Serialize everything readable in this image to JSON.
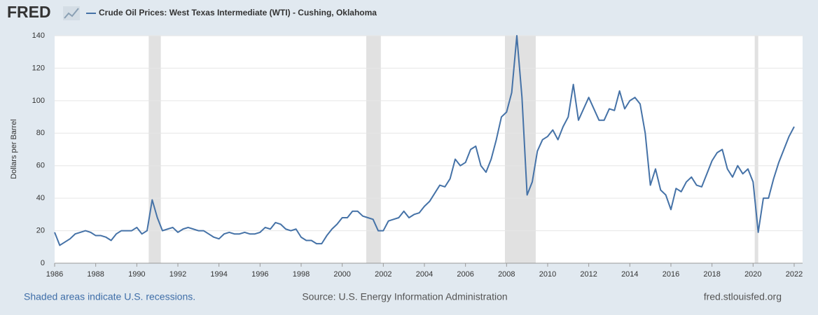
{
  "logo": "FRED",
  "chart_data": {
    "type": "line",
    "ylabel": "Dollars per Barrel",
    "series": [
      {
        "name": "Crude Oil Prices: West Texas Intermediate (WTI) - Cushing, Oklahoma",
        "color": "#4572a7",
        "values": [
          19,
          11,
          13,
          15,
          18,
          19,
          20,
          19,
          17,
          17,
          16,
          14,
          18,
          20,
          20,
          20,
          22,
          18,
          20,
          39,
          28,
          20,
          21,
          22,
          19,
          21,
          22,
          21,
          20,
          20,
          18,
          16,
          15,
          18,
          19,
          18,
          18,
          19,
          18,
          18,
          19,
          22,
          21,
          25,
          24,
          21,
          20,
          21,
          16,
          14,
          14,
          12,
          12,
          17,
          21,
          24,
          28,
          28,
          32,
          32,
          29,
          28,
          27,
          20,
          20,
          26,
          27,
          28,
          32,
          28,
          30,
          31,
          35,
          38,
          43,
          48,
          47,
          52,
          64,
          60,
          62,
          70,
          72,
          60,
          56,
          64,
          76,
          90,
          93,
          105,
          140,
          102,
          42,
          50,
          69,
          76,
          78,
          82,
          76,
          84,
          90,
          110,
          88,
          95,
          102,
          95,
          88,
          88,
          95,
          94,
          106,
          95,
          100,
          102,
          98,
          80,
          48,
          58,
          45,
          42,
          33,
          46,
          44,
          50,
          53,
          48,
          47,
          55,
          63,
          68,
          70,
          58,
          53,
          60,
          55,
          58,
          50,
          19,
          40,
          40,
          52,
          62,
          70,
          78,
          84
        ]
      }
    ],
    "x": [
      1986,
      1986.25,
      1986.5,
      1986.75,
      1987,
      1987.25,
      1987.5,
      1987.75,
      1988,
      1988.25,
      1988.5,
      1988.75,
      1989,
      1989.25,
      1989.5,
      1989.75,
      1990,
      1990.25,
      1990.5,
      1990.75,
      1991,
      1991.25,
      1991.5,
      1991.75,
      1992,
      1992.25,
      1992.5,
      1992.75,
      1993,
      1993.25,
      1993.5,
      1993.75,
      1994,
      1994.25,
      1994.5,
      1994.75,
      1995,
      1995.25,
      1995.5,
      1995.75,
      1996,
      1996.25,
      1996.5,
      1996.75,
      1997,
      1997.25,
      1997.5,
      1997.75,
      1998,
      1998.25,
      1998.5,
      1998.75,
      1999,
      1999.25,
      1999.5,
      1999.75,
      2000,
      2000.25,
      2000.5,
      2000.75,
      2001,
      2001.25,
      2001.5,
      2001.75,
      2002,
      2002.25,
      2002.5,
      2002.75,
      2003,
      2003.25,
      2003.5,
      2003.75,
      2004,
      2004.25,
      2004.5,
      2004.75,
      2005,
      2005.25,
      2005.5,
      2005.75,
      2006,
      2006.25,
      2006.5,
      2006.75,
      2007,
      2007.25,
      2007.5,
      2007.75,
      2008,
      2008.25,
      2008.5,
      2008.75,
      2009,
      2009.25,
      2009.5,
      2009.75,
      2010,
      2010.25,
      2010.5,
      2010.75,
      2011,
      2011.25,
      2011.5,
      2011.75,
      2012,
      2012.25,
      2012.5,
      2012.75,
      2013,
      2013.25,
      2013.5,
      2013.75,
      2014,
      2014.25,
      2014.5,
      2014.75,
      2015,
      2015.25,
      2015.5,
      2015.75,
      2016,
      2016.25,
      2016.5,
      2016.75,
      2017,
      2017.25,
      2017.5,
      2017.75,
      2018,
      2018.25,
      2018.5,
      2018.75,
      2019,
      2019.25,
      2019.5,
      2019.75,
      2020,
      2020.25,
      2020.5,
      2020.75,
      2021,
      2021.25,
      2021.5,
      2021.75,
      2022
    ],
    "xlim": [
      1986,
      2022.41
    ],
    "ylim": [
      0,
      140
    ],
    "xticks": [
      1986,
      1988,
      1990,
      1992,
      1994,
      1996,
      1998,
      2000,
      2002,
      2004,
      2006,
      2008,
      2010,
      2012,
      2014,
      2016,
      2018,
      2020,
      2022
    ],
    "yticks": [
      0,
      20,
      40,
      60,
      80,
      100,
      120,
      140
    ],
    "grid": true,
    "recessions": [
      [
        1990.58,
        1991.17
      ],
      [
        2001.17,
        2001.88
      ],
      [
        2007.92,
        2009.42
      ],
      [
        2020.08,
        2020.25
      ]
    ]
  },
  "footer": {
    "note": "Shaded areas indicate U.S. recessions.",
    "source": "Source: U.S. Energy Information Administration",
    "url": "fred.stlouisfed.org"
  }
}
